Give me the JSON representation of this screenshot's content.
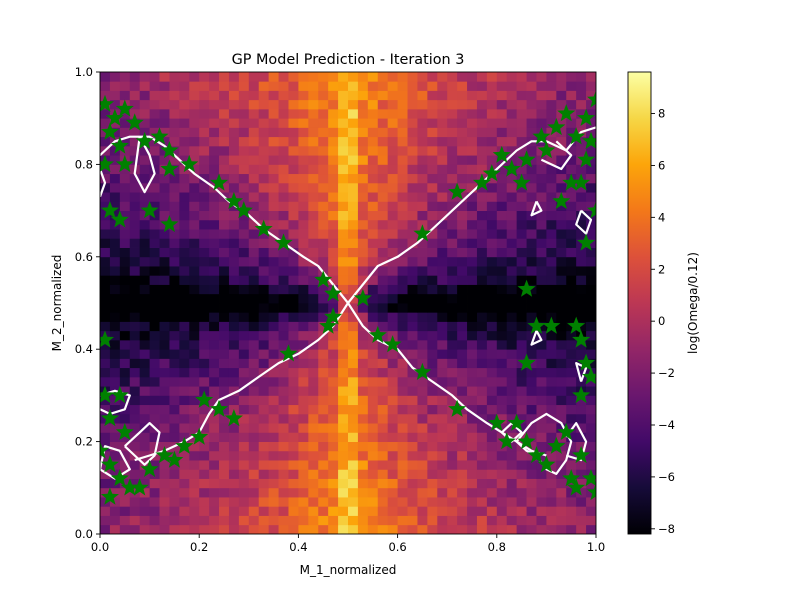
{
  "chart_data": {
    "type": "heatmap",
    "title": "GP Model Prediction - Iteration 3",
    "xlabel": "M_1_normalized",
    "ylabel": "M_2_normalized",
    "colorbar_label": "log(Omega/0.12)",
    "colormap": "inferno",
    "xlim": [
      0,
      1
    ],
    "ylim": [
      0,
      1
    ],
    "color_range": [
      -8.2,
      9.6
    ],
    "grid_resolution": 50,
    "x_ticks": [
      "0.0",
      "0.2",
      "0.4",
      "0.6",
      "0.8",
      "1.0"
    ],
    "y_ticks": [
      "0.0",
      "0.2",
      "0.4",
      "0.6",
      "0.8",
      "1.0"
    ],
    "colorbar_ticks": [
      "-8",
      "-6",
      "-4",
      "-2",
      "0",
      "2",
      "4",
      "6",
      "8"
    ],
    "contour_color": "#ffffff",
    "marker_color": "#008000",
    "contour_lines": [
      [
        [
          0.5,
          0.5
        ],
        [
          0.47,
          0.54
        ],
        [
          0.44,
          0.58
        ],
        [
          0.41,
          0.6
        ],
        [
          0.37,
          0.63
        ],
        [
          0.33,
          0.66
        ],
        [
          0.3,
          0.69
        ],
        [
          0.26,
          0.72
        ],
        [
          0.23,
          0.75
        ],
        [
          0.19,
          0.78
        ],
        [
          0.16,
          0.81
        ],
        [
          0.13,
          0.84
        ],
        [
          0.1,
          0.86
        ],
        [
          0.06,
          0.86
        ],
        [
          0.03,
          0.85
        ],
        [
          0.0,
          0.82
        ]
      ],
      [
        [
          0.5,
          0.5
        ],
        [
          0.53,
          0.54
        ],
        [
          0.56,
          0.58
        ],
        [
          0.6,
          0.6
        ],
        [
          0.64,
          0.63
        ],
        [
          0.68,
          0.67
        ],
        [
          0.71,
          0.7
        ],
        [
          0.75,
          0.74
        ],
        [
          0.78,
          0.77
        ],
        [
          0.81,
          0.8
        ],
        [
          0.84,
          0.83
        ],
        [
          0.87,
          0.85
        ],
        [
          0.9,
          0.85
        ]
      ],
      [
        [
          0.5,
          0.5
        ],
        [
          0.47,
          0.45
        ],
        [
          0.44,
          0.42
        ],
        [
          0.4,
          0.39
        ],
        [
          0.36,
          0.37
        ],
        [
          0.32,
          0.34
        ],
        [
          0.28,
          0.31
        ],
        [
          0.24,
          0.29
        ],
        [
          0.22,
          0.26
        ],
        [
          0.2,
          0.22
        ],
        [
          0.17,
          0.2
        ],
        [
          0.13,
          0.18
        ],
        [
          0.1,
          0.17
        ],
        [
          0.07,
          0.16
        ]
      ],
      [
        [
          0.5,
          0.5
        ],
        [
          0.53,
          0.45
        ],
        [
          0.56,
          0.42
        ],
        [
          0.6,
          0.4
        ],
        [
          0.63,
          0.36
        ],
        [
          0.67,
          0.33
        ],
        [
          0.71,
          0.3
        ],
        [
          0.74,
          0.27
        ],
        [
          0.78,
          0.24
        ],
        [
          0.81,
          0.22
        ],
        [
          0.84,
          0.2
        ],
        [
          0.87,
          0.18
        ],
        [
          0.9,
          0.17
        ]
      ],
      [
        [
          0.0,
          0.3
        ],
        [
          0.03,
          0.31
        ],
        [
          0.06,
          0.3
        ],
        [
          0.05,
          0.27
        ],
        [
          0.02,
          0.26
        ],
        [
          0.0,
          0.27
        ]
      ],
      [
        [
          0.05,
          0.19
        ],
        [
          0.08,
          0.22
        ],
        [
          0.1,
          0.24
        ],
        [
          0.12,
          0.22
        ],
        [
          0.11,
          0.17
        ],
        [
          0.09,
          0.15
        ],
        [
          0.07,
          0.17
        ],
        [
          0.05,
          0.19
        ]
      ],
      [
        [
          0.0,
          0.14
        ],
        [
          0.03,
          0.12
        ],
        [
          0.06,
          0.14
        ],
        [
          0.04,
          0.18
        ],
        [
          0.01,
          0.19
        ],
        [
          0.0,
          0.14
        ]
      ],
      [
        [
          0.08,
          0.86
        ],
        [
          0.1,
          0.82
        ],
        [
          0.11,
          0.78
        ],
        [
          0.09,
          0.74
        ],
        [
          0.07,
          0.78
        ],
        [
          0.08,
          0.86
        ]
      ],
      [
        [
          0.0,
          0.73
        ],
        [
          0.01,
          0.76
        ],
        [
          0.0,
          0.79
        ]
      ],
      [
        [
          0.9,
          0.85
        ],
        [
          0.94,
          0.83
        ],
        [
          0.97,
          0.87
        ],
        [
          1.0,
          0.88
        ]
      ],
      [
        [
          0.89,
          0.81
        ],
        [
          0.93,
          0.79
        ],
        [
          0.95,
          0.82
        ],
        [
          0.92,
          0.85
        ]
      ],
      [
        [
          0.97,
          0.7
        ],
        [
          0.99,
          0.68
        ],
        [
          0.98,
          0.65
        ],
        [
          0.96,
          0.67
        ],
        [
          0.97,
          0.7
        ]
      ],
      [
        [
          0.88,
          0.72
        ],
        [
          0.89,
          0.7
        ],
        [
          0.87,
          0.69
        ],
        [
          0.88,
          0.72
        ]
      ],
      [
        [
          0.84,
          0.2
        ],
        [
          0.87,
          0.24
        ],
        [
          0.9,
          0.26
        ],
        [
          0.93,
          0.24
        ],
        [
          0.95,
          0.2
        ],
        [
          0.94,
          0.16
        ],
        [
          0.92,
          0.13
        ],
        [
          0.9,
          0.14
        ],
        [
          0.88,
          0.17
        ],
        [
          0.86,
          0.18
        ],
        [
          0.84,
          0.2
        ]
      ],
      [
        [
          0.81,
          0.22
        ],
        [
          0.83,
          0.24
        ],
        [
          0.85,
          0.22
        ],
        [
          0.83,
          0.2
        ],
        [
          0.81,
          0.22
        ]
      ],
      [
        [
          0.94,
          0.17
        ],
        [
          0.97,
          0.16
        ],
        [
          0.98,
          0.2
        ],
        [
          0.96,
          0.24
        ],
        [
          0.94,
          0.21
        ]
      ],
      [
        [
          0.97,
          0.33
        ],
        [
          0.98,
          0.36
        ],
        [
          0.96,
          0.37
        ],
        [
          0.97,
          0.33
        ]
      ],
      [
        [
          0.88,
          0.44
        ],
        [
          0.89,
          0.42
        ],
        [
          0.87,
          0.41
        ],
        [
          0.88,
          0.44
        ]
      ]
    ],
    "markers": [
      [
        0.01,
        0.93
      ],
      [
        0.03,
        0.9
      ],
      [
        0.05,
        0.92
      ],
      [
        0.02,
        0.87
      ],
      [
        0.07,
        0.89
      ],
      [
        0.04,
        0.84
      ],
      [
        0.01,
        0.8
      ],
      [
        0.05,
        0.8
      ],
      [
        0.09,
        0.85
      ],
      [
        0.12,
        0.86
      ],
      [
        0.14,
        0.83
      ],
      [
        0.18,
        0.8
      ],
      [
        0.14,
        0.79
      ],
      [
        0.24,
        0.76
      ],
      [
        0.27,
        0.72
      ],
      [
        0.29,
        0.7
      ],
      [
        0.33,
        0.66
      ],
      [
        0.37,
        0.63
      ],
      [
        0.02,
        0.7
      ],
      [
        0.04,
        0.68
      ],
      [
        0.1,
        0.7
      ],
      [
        0.14,
        0.67
      ],
      [
        0.45,
        0.55
      ],
      [
        0.47,
        0.52
      ],
      [
        0.47,
        0.47
      ],
      [
        0.46,
        0.45
      ],
      [
        0.38,
        0.39
      ],
      [
        0.01,
        0.42
      ],
      [
        0.01,
        0.3
      ],
      [
        0.04,
        0.3
      ],
      [
        0.02,
        0.25
      ],
      [
        0.05,
        0.22
      ],
      [
        0.0,
        0.18
      ],
      [
        0.02,
        0.15
      ],
      [
        0.04,
        0.12
      ],
      [
        0.06,
        0.1
      ],
      [
        0.02,
        0.08
      ],
      [
        0.08,
        0.1
      ],
      [
        0.1,
        0.14
      ],
      [
        0.13,
        0.17
      ],
      [
        0.15,
        0.16
      ],
      [
        0.17,
        0.19
      ],
      [
        0.2,
        0.21
      ],
      [
        0.21,
        0.29
      ],
      [
        0.24,
        0.27
      ],
      [
        0.27,
        0.25
      ],
      [
        0.53,
        0.51
      ],
      [
        0.56,
        0.43
      ],
      [
        0.59,
        0.41
      ],
      [
        0.65,
        0.35
      ],
      [
        0.72,
        0.27
      ],
      [
        0.8,
        0.24
      ],
      [
        0.82,
        0.2
      ],
      [
        0.84,
        0.24
      ],
      [
        0.86,
        0.2
      ],
      [
        0.88,
        0.17
      ],
      [
        0.9,
        0.15
      ],
      [
        0.92,
        0.19
      ],
      [
        0.94,
        0.22
      ],
      [
        0.95,
        0.12
      ],
      [
        0.97,
        0.17
      ],
      [
        0.99,
        0.12
      ],
      [
        1.0,
        0.09
      ],
      [
        0.96,
        0.1
      ],
      [
        0.86,
        0.37
      ],
      [
        0.88,
        0.45
      ],
      [
        0.91,
        0.45
      ],
      [
        0.96,
        0.45
      ],
      [
        0.97,
        0.42
      ],
      [
        0.98,
        0.37
      ],
      [
        0.99,
        0.34
      ],
      [
        0.97,
        0.3
      ],
      [
        0.86,
        0.53
      ],
      [
        0.98,
        0.63
      ],
      [
        1.0,
        0.7
      ],
      [
        0.93,
        0.72
      ],
      [
        0.95,
        0.76
      ],
      [
        0.97,
        0.76
      ],
      [
        0.85,
        0.76
      ],
      [
        0.83,
        0.79
      ],
      [
        0.86,
        0.81
      ],
      [
        0.81,
        0.82
      ],
      [
        0.79,
        0.78
      ],
      [
        0.77,
        0.76
      ],
      [
        0.72,
        0.74
      ],
      [
        0.65,
        0.65
      ],
      [
        0.89,
        0.86
      ],
      [
        0.92,
        0.88
      ],
      [
        0.94,
        0.91
      ],
      [
        0.96,
        0.86
      ],
      [
        0.98,
        0.9
      ],
      [
        1.0,
        0.94
      ],
      [
        0.99,
        0.85
      ],
      [
        0.98,
        0.81
      ],
      [
        0.9,
        0.83
      ]
    ]
  }
}
